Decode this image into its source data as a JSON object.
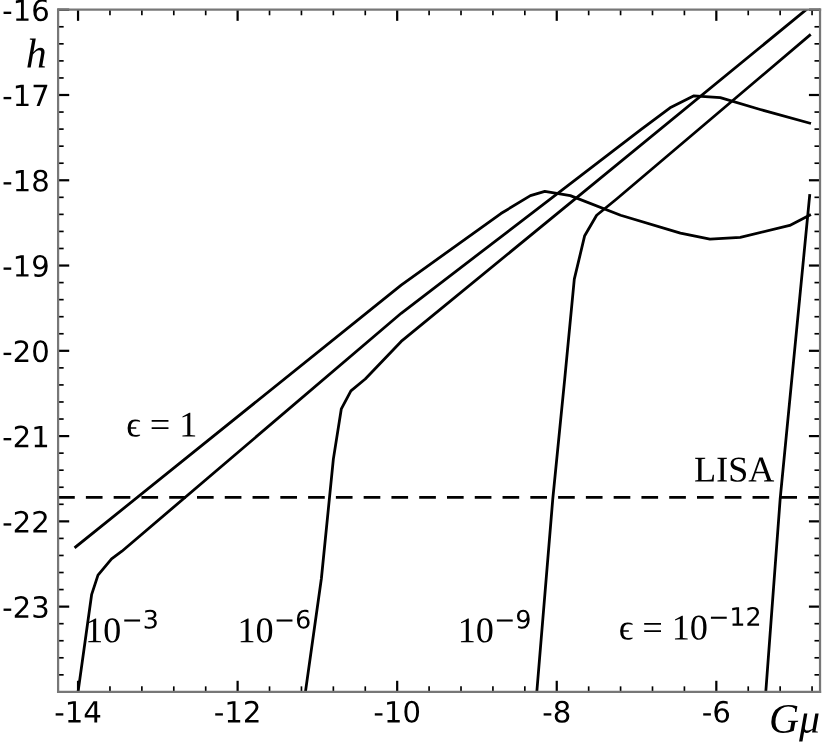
{
  "chart_data": {
    "type": "line",
    "xlabel": "Gμ",
    "ylabel": "h",
    "xlim": [
      -14.25,
      -4.7
    ],
    "ylim": [
      -24,
      -16
    ],
    "xticks": [
      -14,
      -12,
      -10,
      -8,
      -6
    ],
    "yticks": [
      -23,
      -22,
      -21,
      -20,
      -19,
      -18,
      -17,
      -16
    ],
    "grid": false,
    "marker": "none",
    "line_style": "solid",
    "series": [
      {
        "name": "ϵ = 1",
        "color": "#000000",
        "x": [
          -14.03,
          -9.95,
          -8.7,
          -8.33,
          -8.15,
          -7.83,
          -7.2,
          -6.45,
          -6.08,
          -5.7,
          -5.08,
          -4.83
        ],
        "values": [
          -22.3,
          -19.23,
          -18.39,
          -18.18,
          -18.13,
          -18.18,
          -18.41,
          -18.62,
          -18.69,
          -18.67,
          -18.53,
          -18.41
        ]
      },
      {
        "name": "10$^{−3}$",
        "color": "#000000",
        "x": [
          -14.0,
          -13.9,
          -13.83,
          -13.75,
          -13.58,
          -13.45,
          -9.95,
          -6.95,
          -6.58,
          -6.28,
          -5.95,
          -5.45,
          -4.83
        ],
        "values": [
          -24.0,
          -23.33,
          -22.86,
          -22.63,
          -22.44,
          -22.35,
          -19.56,
          -17.41,
          -17.15,
          -17.01,
          -17.03,
          -17.17,
          -17.33
        ]
      },
      {
        "name": "10$^{−6}$",
        "color": "#000000",
        "x": [
          -11.15,
          -10.95,
          -10.8,
          -10.7,
          -10.58,
          -10.4,
          -9.95,
          -4.875
        ],
        "values": [
          -24.0,
          -22.67,
          -21.27,
          -20.68,
          -20.47,
          -20.33,
          -19.89,
          -16.0
        ]
      },
      {
        "name": "10$^{−9}$",
        "color": "#000000",
        "x": [
          -8.25,
          -8.05,
          -7.9,
          -7.78,
          -7.65,
          -7.5,
          -7.25,
          -4.83
        ],
        "values": [
          -24.0,
          -21.74,
          -20.33,
          -19.16,
          -18.65,
          -18.41,
          -18.22,
          -16.3
        ]
      },
      {
        "name": "ϵ = 10$^{−12}$",
        "color": "#000000",
        "x": [
          -5.38,
          -5.2,
          -4.83
        ],
        "values": [
          -24.0,
          -21.74,
          -18.18
        ]
      }
    ],
    "ref_lines": [
      {
        "axis": "y",
        "value": -21.72,
        "label": "LISA",
        "color": "#000000",
        "line_style": "dashed"
      }
    ]
  }
}
